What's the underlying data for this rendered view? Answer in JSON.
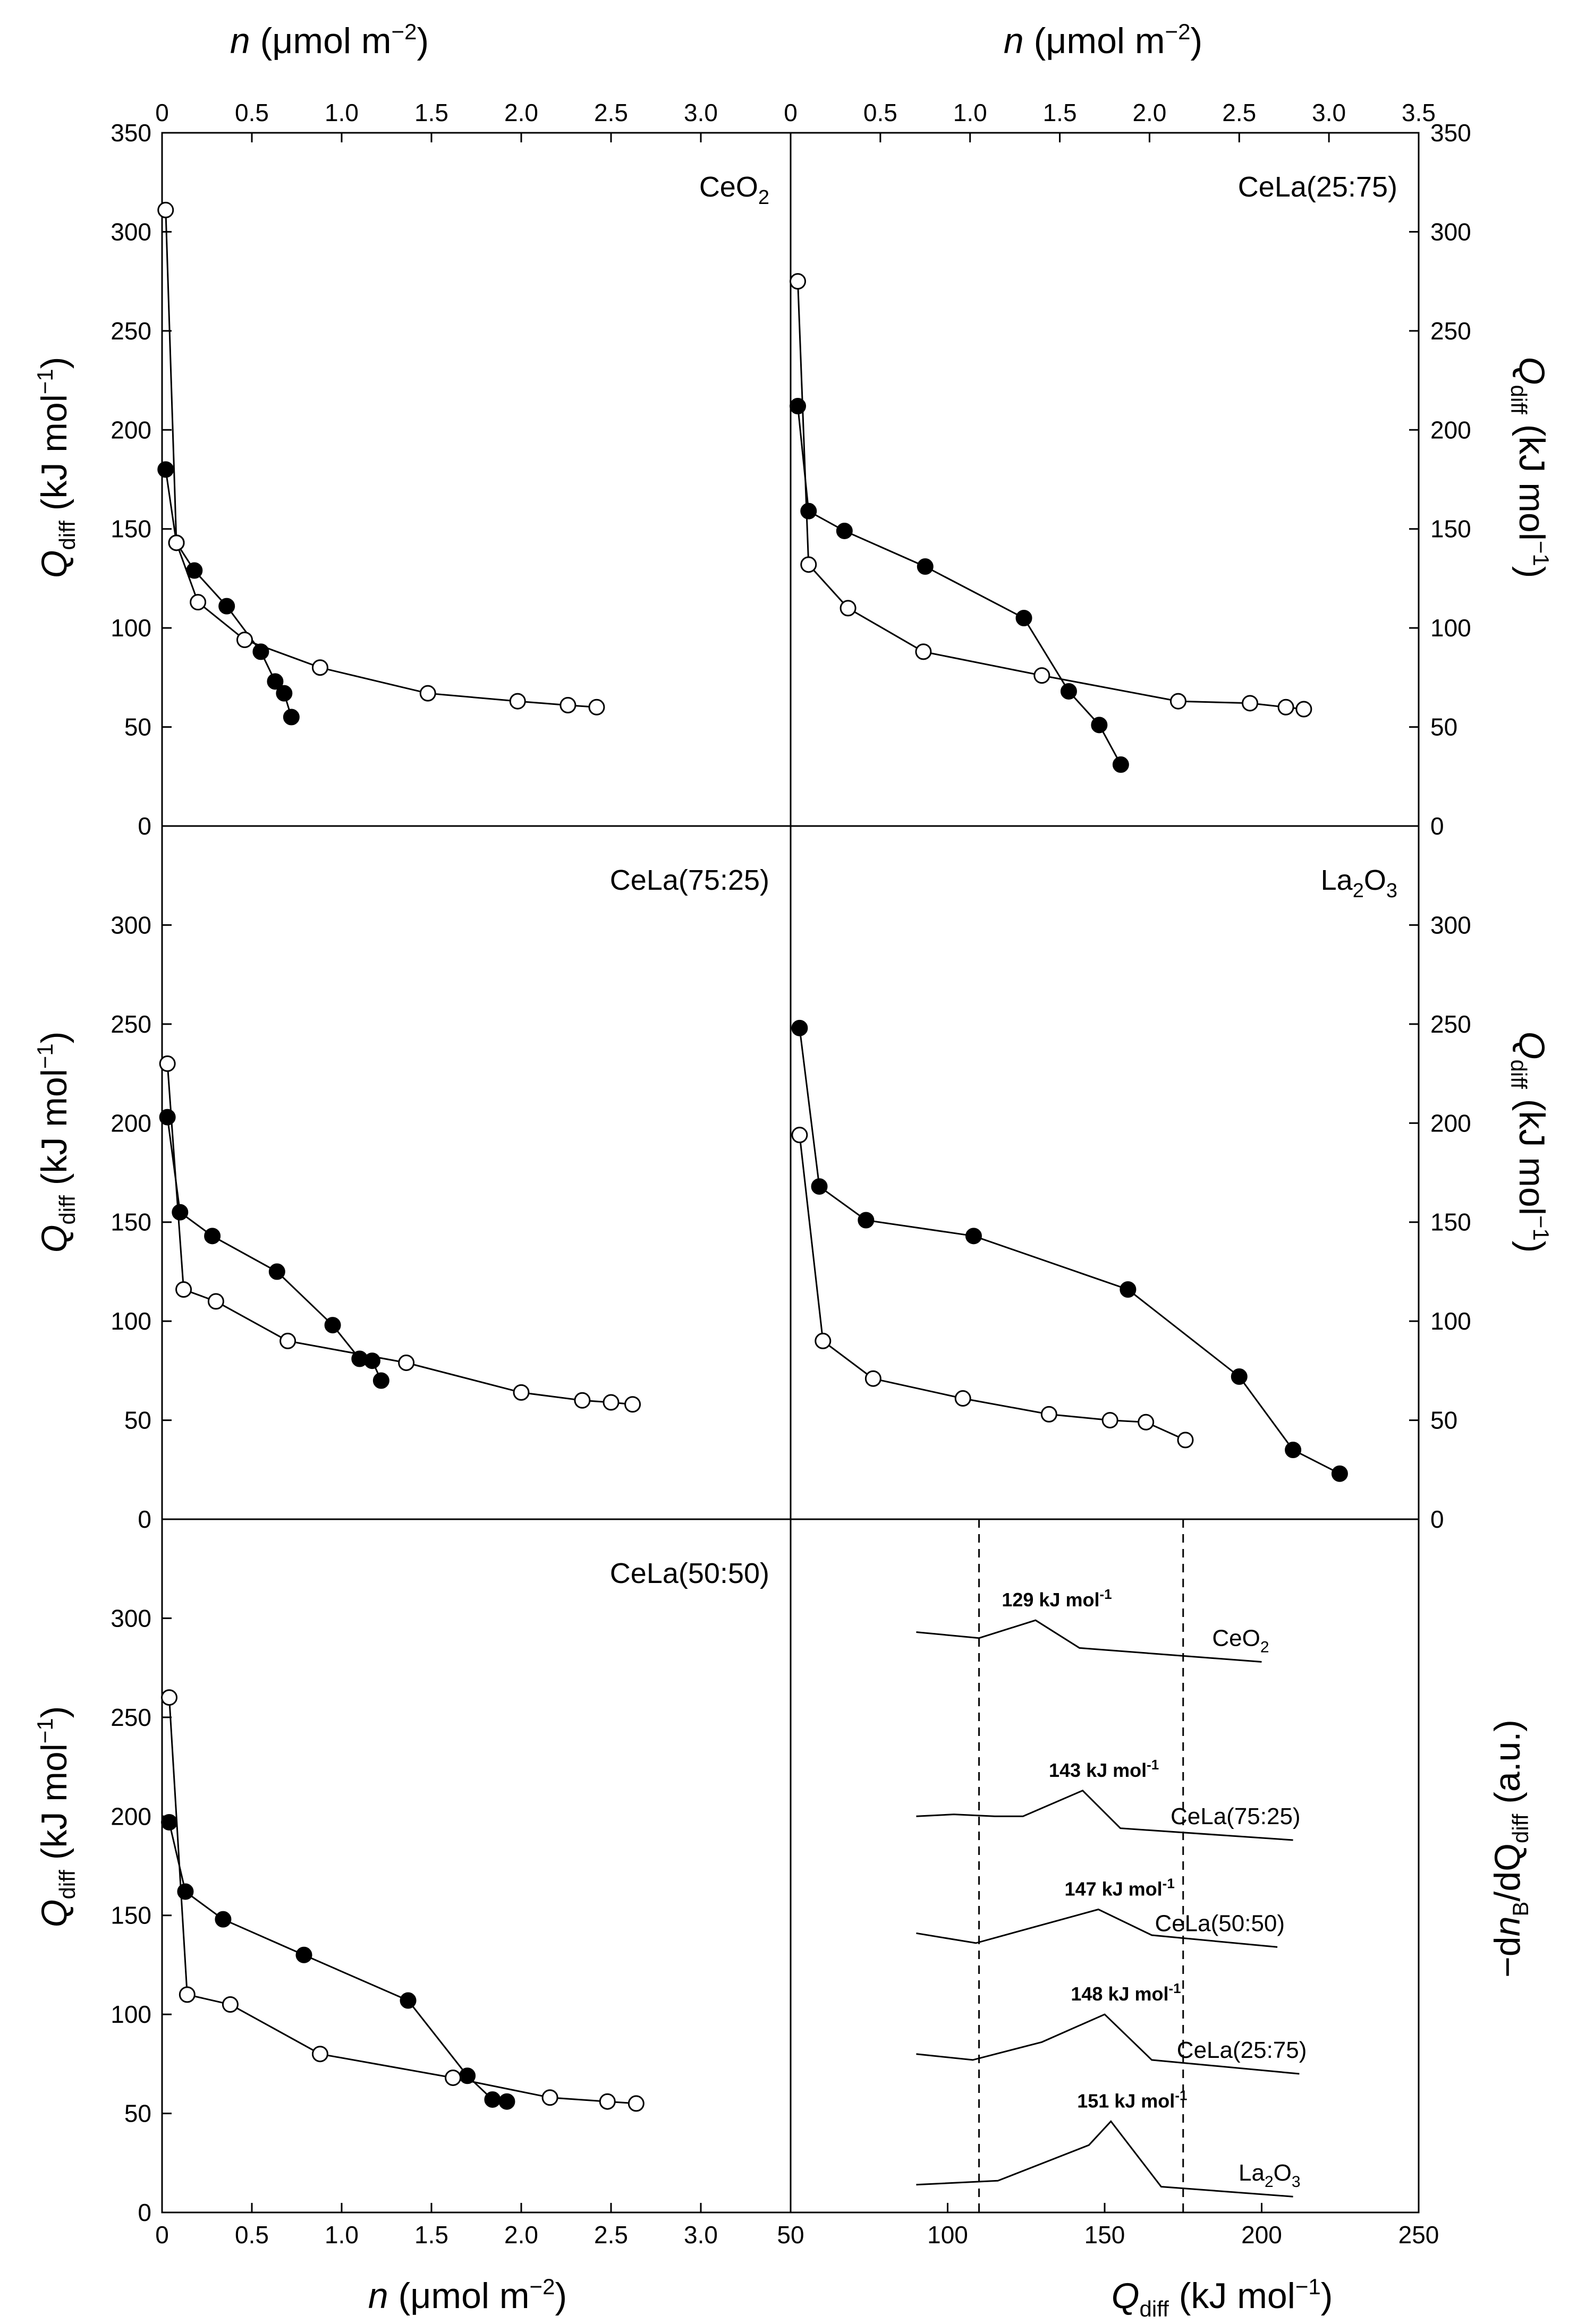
{
  "axis_text": {
    "n_label_sym": "n",
    "n_label_unit": " (μmol m",
    "n_label_exp": "−2",
    "n_label_close": ")",
    "q_label_sym": "Q",
    "q_label_sub": "diff",
    "q_label_unit": " (kJ mol",
    "q_label_exp": "−1",
    "q_label_close": ")",
    "dn_label_pre": "−d",
    "dn_label_sym": "n",
    "dn_label_sub": "B",
    "dn_label_mid": "/dQ",
    "dn_label_sub2": "diff",
    "dn_label_post": " (a.u.)"
  },
  "chart_data": [
    {
      "type": "line",
      "panel": "CeO2",
      "label_main": "CeO",
      "label_sub": "2",
      "label_tail": "",
      "xlim": [
        0,
        3.5
      ],
      "ylim": [
        0,
        350
      ],
      "x_ticks": [
        "0",
        "0.5",
        "1.0",
        "1.5",
        "2.0",
        "2.5",
        "3.0"
      ],
      "y_ticks": [
        "0",
        "50",
        "100",
        "150",
        "200",
        "250",
        "300",
        "350"
      ],
      "series": [
        {
          "marker": "filled",
          "points": [
            [
              0.02,
              180
            ],
            [
              0.08,
              143
            ],
            [
              0.18,
              129
            ],
            [
              0.36,
              111
            ],
            [
              0.55,
              88
            ],
            [
              0.63,
              73
            ],
            [
              0.68,
              67
            ],
            [
              0.72,
              55
            ]
          ]
        },
        {
          "marker": "open",
          "points": [
            [
              0.02,
              311
            ],
            [
              0.08,
              143
            ],
            [
              0.2,
              113
            ],
            [
              0.46,
              94
            ],
            [
              0.88,
              80
            ],
            [
              1.48,
              67
            ],
            [
              1.98,
              63
            ],
            [
              2.26,
              61
            ],
            [
              2.42,
              60
            ]
          ]
        }
      ]
    },
    {
      "type": "line",
      "panel": "CeLa(25:75)",
      "label_main": "CeLa(25:75)",
      "label_sub": "",
      "label_tail": "",
      "xlim": [
        0,
        3.5
      ],
      "ylim": [
        0,
        350
      ],
      "x_ticks": [
        "0",
        "0.5",
        "1.0",
        "1.5",
        "2.0",
        "2.5",
        "3.0",
        "3.5"
      ],
      "y_ticks": [
        "0",
        "50",
        "100",
        "150",
        "200",
        "250",
        "300",
        "350"
      ],
      "series": [
        {
          "marker": "filled",
          "points": [
            [
              0.04,
              212
            ],
            [
              0.1,
              159
            ],
            [
              0.3,
              149
            ],
            [
              0.75,
              131
            ],
            [
              1.3,
              105
            ],
            [
              1.55,
              68
            ],
            [
              1.72,
              51
            ],
            [
              1.84,
              31
            ]
          ]
        },
        {
          "marker": "open",
          "points": [
            [
              0.04,
              275
            ],
            [
              0.1,
              132
            ],
            [
              0.32,
              110
            ],
            [
              0.74,
              88
            ],
            [
              1.4,
              76
            ],
            [
              2.16,
              63
            ],
            [
              2.56,
              62
            ],
            [
              2.76,
              60
            ],
            [
              2.86,
              59
            ]
          ]
        }
      ]
    },
    {
      "type": "line",
      "panel": "CeLa(75:25)",
      "label_main": "CeLa(75:25)",
      "label_sub": "",
      "label_tail": "",
      "xlim": [
        0,
        3.5
      ],
      "ylim": [
        0,
        350
      ],
      "x_ticks": [],
      "y_ticks": [
        "0",
        "50",
        "100",
        "150",
        "200",
        "250",
        "300"
      ],
      "series": [
        {
          "marker": "filled",
          "points": [
            [
              0.03,
              203
            ],
            [
              0.1,
              155
            ],
            [
              0.28,
              143
            ],
            [
              0.64,
              125
            ],
            [
              0.95,
              98
            ],
            [
              1.1,
              81
            ],
            [
              1.17,
              80
            ],
            [
              1.22,
              70
            ]
          ]
        },
        {
          "marker": "open",
          "points": [
            [
              0.03,
              230
            ],
            [
              0.12,
              116
            ],
            [
              0.3,
              110
            ],
            [
              0.7,
              90
            ],
            [
              1.36,
              79
            ],
            [
              2.0,
              64
            ],
            [
              2.34,
              60
            ],
            [
              2.5,
              59
            ],
            [
              2.62,
              58
            ]
          ]
        }
      ]
    },
    {
      "type": "line",
      "panel": "La2O3",
      "label_main": "La",
      "label_sub": "2",
      "label_tail": "O",
      "label_sub2": "3",
      "xlim": [
        0,
        3.5
      ],
      "ylim": [
        0,
        350
      ],
      "x_ticks": [],
      "y_ticks": [
        "0",
        "50",
        "100",
        "150",
        "200",
        "250",
        "300"
      ],
      "series": [
        {
          "marker": "filled",
          "points": [
            [
              0.05,
              248
            ],
            [
              0.16,
              168
            ],
            [
              0.42,
              151
            ],
            [
              1.02,
              143
            ],
            [
              1.88,
              116
            ],
            [
              2.5,
              72
            ],
            [
              2.8,
              35
            ],
            [
              3.06,
              23
            ]
          ]
        },
        {
          "marker": "open",
          "points": [
            [
              0.05,
              194
            ],
            [
              0.18,
              90
            ],
            [
              0.46,
              71
            ],
            [
              0.96,
              61
            ],
            [
              1.44,
              53
            ],
            [
              1.78,
              50
            ],
            [
              1.98,
              49
            ],
            [
              2.2,
              40
            ]
          ]
        }
      ]
    },
    {
      "type": "line",
      "panel": "CeLa(50:50)",
      "label_main": "CeLa(50:50)",
      "label_sub": "",
      "label_tail": "",
      "xlim": [
        0,
        3.5
      ],
      "ylim": [
        0,
        350
      ],
      "x_ticks": [
        "0",
        "0.5",
        "1.0",
        "1.5",
        "2.0",
        "2.5",
        "3.0"
      ],
      "y_ticks": [
        "0",
        "50",
        "100",
        "150",
        "200",
        "250",
        "300"
      ],
      "series": [
        {
          "marker": "filled",
          "points": [
            [
              0.04,
              197
            ],
            [
              0.13,
              162
            ],
            [
              0.34,
              148
            ],
            [
              0.79,
              130
            ],
            [
              1.37,
              107
            ],
            [
              1.7,
              69
            ],
            [
              1.84,
              57
            ],
            [
              1.92,
              56
            ]
          ]
        },
        {
          "marker": "open",
          "points": [
            [
              0.04,
              260
            ],
            [
              0.14,
              110
            ],
            [
              0.38,
              105
            ],
            [
              0.88,
              80
            ],
            [
              1.62,
              68
            ],
            [
              2.16,
              58
            ],
            [
              2.48,
              56
            ],
            [
              2.64,
              55
            ]
          ]
        }
      ]
    },
    {
      "type": "line",
      "panel": "distribution",
      "xlim": [
        50,
        250
      ],
      "x_ticks": [
        "50",
        "100",
        "150",
        "200",
        "250"
      ],
      "reference_lines_x": [
        110,
        175
      ],
      "curves": [
        {
          "label_main": "CeO",
          "label_sub": "2",
          "label_tail": "",
          "label_sub2": "",
          "peak": "129 kJ mol",
          "peak_exp": "-1",
          "points": [
            [
              90,
              293
            ],
            [
              110,
              290
            ],
            [
              128,
              299
            ],
            [
              142,
              285
            ],
            [
              200,
              278
            ]
          ]
        },
        {
          "label_main": "CeLa(75:25)",
          "label_sub": "",
          "label_tail": "",
          "label_sub2": "",
          "peak": "143 kJ mol",
          "peak_exp": "-1",
          "points": [
            [
              90,
              200
            ],
            [
              102,
              201
            ],
            [
              115,
              200
            ],
            [
              124,
              200
            ],
            [
              143,
              213
            ],
            [
              155,
              194
            ],
            [
              210,
              188
            ]
          ]
        },
        {
          "label_main": "CeLa(50:50)",
          "label_sub": "",
          "label_tail": "",
          "label_sub2": "",
          "peak": "147 kJ mol",
          "peak_exp": "-1",
          "points": [
            [
              90,
              141
            ],
            [
              109,
              136
            ],
            [
              148,
              153
            ],
            [
              165,
              140
            ],
            [
              205,
              134
            ]
          ]
        },
        {
          "label_main": "CeLa(25:75)",
          "label_sub": "",
          "label_tail": "",
          "label_sub2": "",
          "peak": "148 kJ mol",
          "peak_exp": "-1",
          "points": [
            [
              90,
              80
            ],
            [
              108,
              77
            ],
            [
              130,
              86
            ],
            [
              150,
              100
            ],
            [
              165,
              77
            ],
            [
              212,
              70
            ]
          ]
        },
        {
          "label_main": "La",
          "label_sub": "2",
          "label_tail": "O",
          "label_sub2": "3",
          "peak": "151 kJ mol",
          "peak_exp": "-1",
          "points": [
            [
              90,
              14
            ],
            [
              116,
              16
            ],
            [
              145,
              34
            ],
            [
              152,
              46
            ],
            [
              168,
              13
            ],
            [
              210,
              8
            ]
          ]
        }
      ]
    }
  ]
}
